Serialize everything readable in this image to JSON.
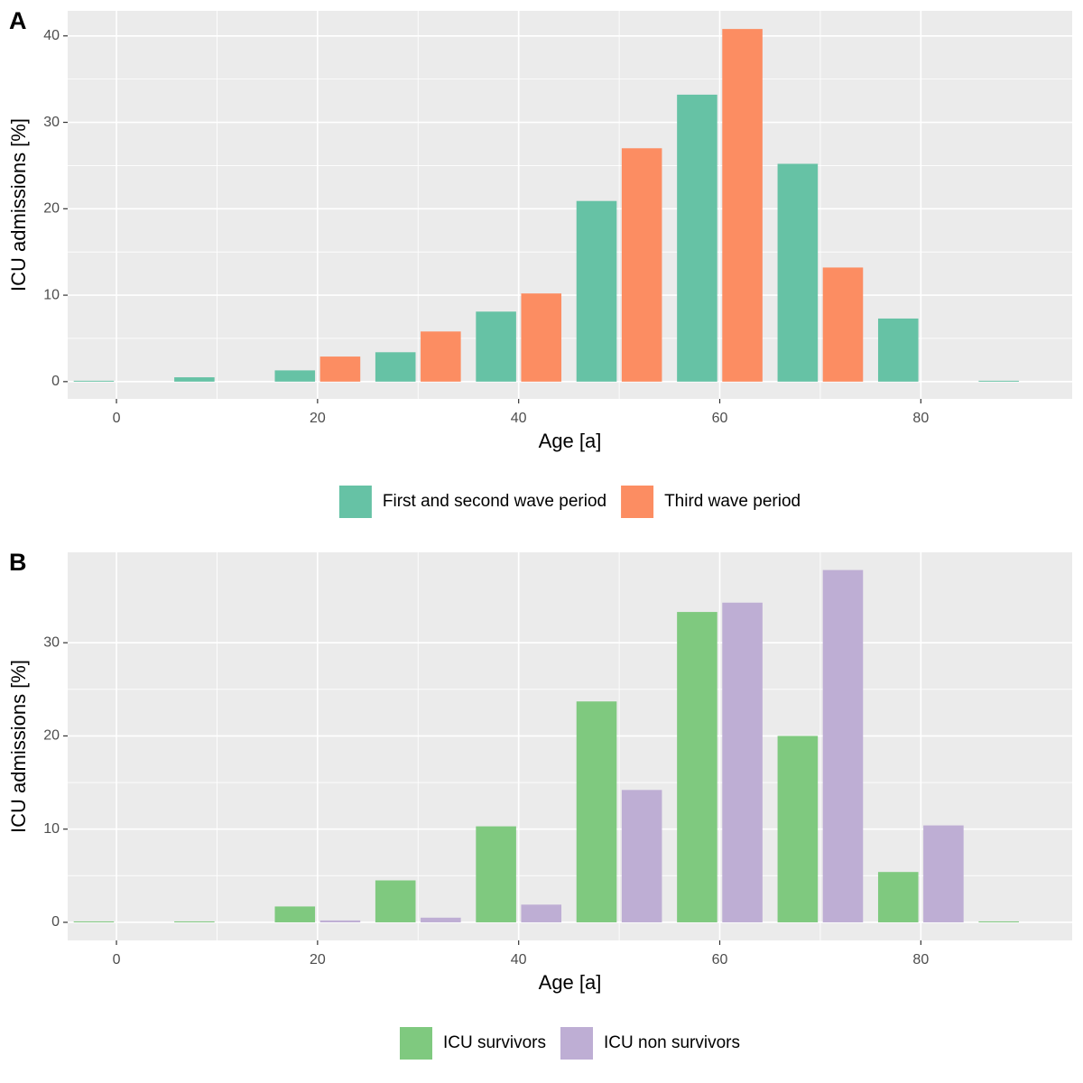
{
  "chart_data": [
    {
      "type": "bar",
      "label": "A",
      "x_label": "Age [a]",
      "y_label": "ICU admissions [%]",
      "x": [
        0,
        10,
        20,
        30,
        40,
        50,
        60,
        70,
        80,
        90
      ],
      "series": [
        {
          "name": "First and second wave period",
          "color": "#66c2a5",
          "values": [
            0.1,
            0.5,
            1.3,
            3.4,
            8.1,
            20.9,
            33.2,
            25.2,
            7.3,
            0.1
          ]
        },
        {
          "name": "Third wave period",
          "color": "#fc8d62",
          "values": [
            0,
            0,
            2.9,
            5.8,
            10.2,
            27.0,
            40.8,
            13.2,
            0,
            0
          ]
        }
      ],
      "xlim": [
        -4.85,
        95.05
      ],
      "ylim": [
        -2,
        42.9
      ],
      "xticks": [
        0,
        20,
        40,
        60,
        80
      ],
      "yticks": [
        0,
        10,
        20,
        30,
        40
      ],
      "grid": true,
      "legend": "bottom"
    },
    {
      "type": "bar",
      "label": "B",
      "x_label": "Age [a]",
      "y_label": "ICU admissions [%]",
      "x": [
        0,
        10,
        20,
        30,
        40,
        50,
        60,
        70,
        80,
        90
      ],
      "series": [
        {
          "name": "ICU survivors",
          "color": "#7fc97f",
          "values": [
            0.1,
            0.1,
            1.7,
            4.5,
            10.3,
            23.7,
            33.3,
            20.0,
            5.4,
            0.1
          ]
        },
        {
          "name": "ICU non survivors",
          "color": "#beaed4",
          "values": [
            0,
            0,
            0.2,
            0.5,
            1.9,
            14.2,
            34.3,
            37.8,
            10.4,
            0
          ]
        }
      ],
      "xlim": [
        -4.85,
        95.05
      ],
      "ylim": [
        -1.94,
        39.7
      ],
      "xticks": [
        0,
        20,
        40,
        60,
        80
      ],
      "yticks": [
        0,
        10,
        20,
        30
      ],
      "grid": true,
      "legend": "bottom"
    }
  ]
}
